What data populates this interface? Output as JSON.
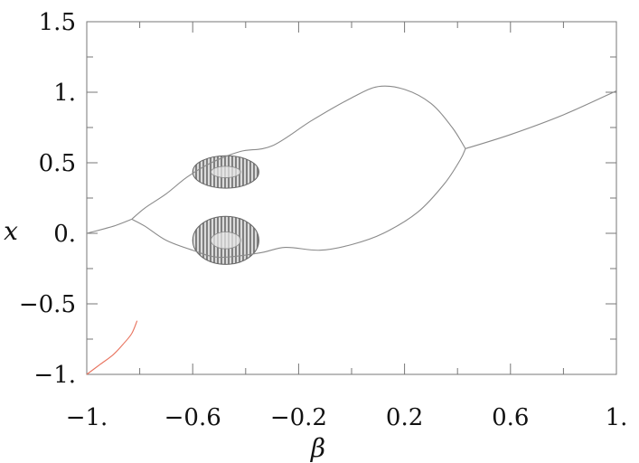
{
  "chart_data": {
    "type": "line",
    "title": "",
    "xlabel": "β",
    "ylabel": "x",
    "xlim": [
      -1.0,
      1.0
    ],
    "ylim": [
      -1.0,
      1.5
    ],
    "grid": false,
    "x_ticks": [
      {
        "value": -1.0,
        "label": "−1."
      },
      {
        "value": -0.6,
        "label": "−0.6"
      },
      {
        "value": -0.2,
        "label": "−0.2"
      },
      {
        "value": 0.2,
        "label": "0.2"
      },
      {
        "value": 0.6,
        "label": "0.6"
      },
      {
        "value": 1.0,
        "label": "1."
      }
    ],
    "y_ticks": [
      {
        "value": -1.0,
        "label": "−1."
      },
      {
        "value": -0.5,
        "label": "−0.5"
      },
      {
        "value": 0.0,
        "label": "0."
      },
      {
        "value": 0.5,
        "label": "0.5"
      },
      {
        "value": 1.0,
        "label": "1."
      },
      {
        "value": 1.5,
        "label": "1.5"
      }
    ],
    "series": [
      {
        "color": "#8a8a8a",
        "points": [
          [
            -1.0,
            0.0
          ],
          [
            -0.9,
            0.05
          ],
          [
            -0.83,
            0.1
          ]
        ]
      },
      {
        "color": "#8a8a8a",
        "points": [
          [
            -0.83,
            0.1
          ],
          [
            -0.78,
            0.18
          ],
          [
            -0.7,
            0.28
          ],
          [
            -0.62,
            0.4
          ],
          [
            -0.53,
            0.5
          ],
          [
            -0.42,
            0.58
          ],
          [
            -0.3,
            0.62
          ],
          [
            -0.15,
            0.8
          ],
          [
            0.0,
            0.96
          ],
          [
            0.1,
            1.04
          ],
          [
            0.2,
            1.02
          ],
          [
            0.3,
            0.92
          ],
          [
            0.38,
            0.75
          ],
          [
            0.43,
            0.6
          ]
        ]
      },
      {
        "color": "#8a8a8a",
        "points": [
          [
            -0.83,
            0.1
          ],
          [
            -0.78,
            0.05
          ],
          [
            -0.7,
            -0.05
          ],
          [
            -0.6,
            -0.12
          ],
          [
            -0.5,
            -0.17
          ],
          [
            -0.35,
            -0.14
          ],
          [
            -0.25,
            -0.1
          ],
          [
            -0.12,
            -0.12
          ],
          [
            0.0,
            -0.08
          ],
          [
            0.12,
            0.0
          ],
          [
            0.25,
            0.15
          ],
          [
            0.35,
            0.35
          ],
          [
            0.41,
            0.52
          ],
          [
            0.43,
            0.6
          ]
        ]
      },
      {
        "color": "#8a8a8a",
        "points": [
          [
            0.43,
            0.6
          ],
          [
            0.6,
            0.7
          ],
          [
            0.8,
            0.84
          ],
          [
            1.0,
            1.01
          ]
        ]
      },
      {
        "color": "#e8735e",
        "points": [
          [
            -1.0,
            -1.0
          ],
          [
            -0.95,
            -0.93
          ],
          [
            -0.9,
            -0.86
          ],
          [
            -0.86,
            -0.78
          ],
          [
            -0.83,
            -0.71
          ],
          [
            -0.81,
            -0.62
          ]
        ]
      }
    ],
    "chaotic_regions": [
      {
        "x_range": [
          -0.6,
          -0.35
        ],
        "y_range": [
          0.32,
          0.55
        ]
      },
      {
        "x_range": [
          -0.6,
          -0.35
        ],
        "y_range": [
          -0.22,
          0.12
        ]
      }
    ]
  }
}
